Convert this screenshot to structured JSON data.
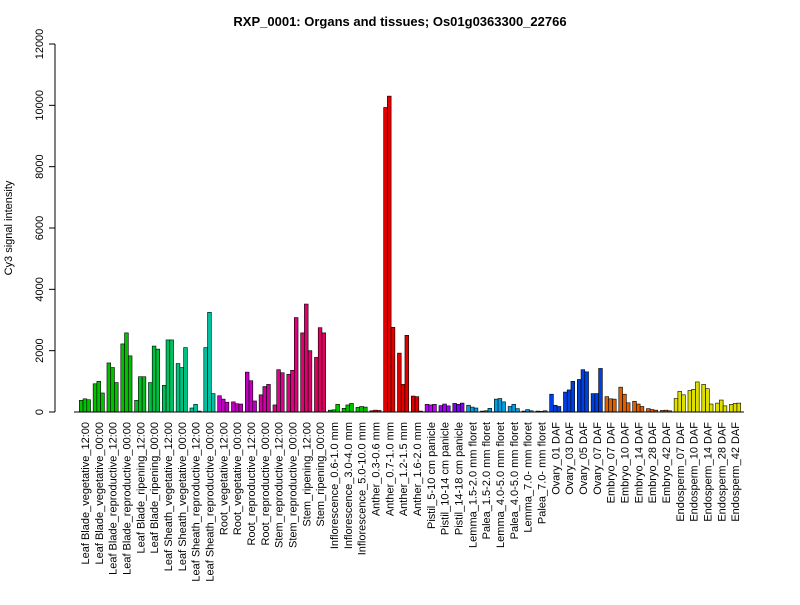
{
  "chart_data": {
    "type": "bar",
    "title": "RXP_0001: Organs and tissues; Os01g0363300_22766",
    "xlabel": "",
    "ylabel": "Cy3 signal intensity",
    "ylim": [
      0,
      12000
    ],
    "yticks": [
      0,
      2000,
      4000,
      6000,
      8000,
      10000,
      12000
    ],
    "grid": false,
    "legend": "none",
    "groups": [
      {
        "label": "Leaf Blade_vegetative_12:00",
        "color": "#00c000",
        "values": [
          380,
          430,
          400
        ]
      },
      {
        "label": "Leaf Blade_vegetative_00:00",
        "color": "#00c000",
        "values": [
          920,
          1000,
          620
        ]
      },
      {
        "label": "Leaf Blade_reproductive_12:00",
        "color": "#00c000",
        "values": [
          1600,
          1450,
          960
        ]
      },
      {
        "label": "Leaf Blade_reproductive_00:00",
        "color": "#00c000",
        "values": [
          2220,
          2580,
          1830
        ]
      },
      {
        "label": "Leaf Blade_ripening_12:00",
        "color": "#00c020",
        "values": [
          380,
          1150,
          1150
        ]
      },
      {
        "label": "Leaf Blade_ripening_00:00",
        "color": "#00c040",
        "values": [
          960,
          2150,
          2050
        ]
      },
      {
        "label": "Leaf Sheath_vegetative_12:00",
        "color": "#00c060",
        "values": [
          870,
          2350,
          2350
        ]
      },
      {
        "label": "Leaf Sheath_vegetative_00:00",
        "color": "#00c080",
        "values": [
          1580,
          1450,
          2100
        ]
      },
      {
        "label": "Leaf Sheath_reproductive_12:00",
        "color": "#00c0a0",
        "values": [
          130,
          250,
          30
        ]
      },
      {
        "label": "Leaf Sheath_reproductive_00:00",
        "color": "#00c0a0",
        "values": [
          2100,
          3250,
          600
        ]
      },
      {
        "label": "Root_vegetative_12:00",
        "color": "#c000c0",
        "values": [
          530,
          420,
          320
        ]
      },
      {
        "label": "Root_vegetative_00:00",
        "color": "#c000c0",
        "values": [
          330,
          270,
          260
        ]
      },
      {
        "label": "Root_reproductive_12:00",
        "color": "#c000c0",
        "values": [
          1300,
          1020,
          360
        ]
      },
      {
        "label": "Root_reproductive_00:00",
        "color": "#d000a0",
        "values": [
          560,
          830,
          900
        ]
      },
      {
        "label": "Stem_reproductive_12:00",
        "color": "#e00090",
        "values": [
          230,
          1380,
          1280
        ]
      },
      {
        "label": "Stem_reproductive_00:00",
        "color": "#e00080",
        "values": [
          1230,
          1360,
          3080
        ]
      },
      {
        "label": "Stem_ripening_12:00",
        "color": "#e00070",
        "values": [
          2580,
          3520,
          2000
        ]
      },
      {
        "label": "Stem_ripening_00:00",
        "color": "#e00060",
        "values": [
          1780,
          2750,
          2580
        ]
      },
      {
        "label": "Inflorescence_0.6-1.0 mm",
        "color": "#00c000",
        "values": [
          60,
          70,
          250
        ]
      },
      {
        "label": "Inflorescence_3.0-4.0 mm",
        "color": "#00c000",
        "values": [
          120,
          230,
          280
        ]
      },
      {
        "label": "Inflorescence_5.0-10.0 mm",
        "color": "#00c000",
        "values": [
          150,
          180,
          160
        ]
      },
      {
        "label": "Anther_0.3-0.6 mm",
        "color": "#ff0000",
        "values": [
          40,
          60,
          50
        ]
      },
      {
        "label": "Anther_0.7-1.0 mm",
        "color": "#e00000",
        "values": [
          9930,
          10300,
          2760
        ]
      },
      {
        "label": "Anther_1.2-1.5 mm",
        "color": "#e00000",
        "values": [
          1920,
          900,
          2500
        ]
      },
      {
        "label": "Anther_1.6-2.0 mm",
        "color": "#e00000",
        "values": [
          520,
          500,
          30
        ]
      },
      {
        "label": "Pistil_5-10 cm panicle",
        "color": "#c000ff",
        "values": [
          250,
          230,
          250
        ]
      },
      {
        "label": "Pistil_10-14 cm panicle",
        "color": "#a000ff",
        "values": [
          210,
          260,
          200
        ]
      },
      {
        "label": "Pistil_14-18 cm panicle",
        "color": "#8000ff",
        "values": [
          280,
          250,
          290
        ]
      },
      {
        "label": "Lemma_1.5-2.0 mm floret",
        "color": "#00a0e0",
        "values": [
          220,
          160,
          130
        ]
      },
      {
        "label": "Palea_1.5-2.0 mm floret",
        "color": "#00a0e0",
        "values": [
          30,
          40,
          120
        ]
      },
      {
        "label": "Lemma_4.0-5.0 mm floret",
        "color": "#00a0e0",
        "values": [
          420,
          440,
          330
        ]
      },
      {
        "label": "Palea_4.0-5.0 mm floret",
        "color": "#00a0e0",
        "values": [
          180,
          250,
          110
        ]
      },
      {
        "label": "Lemma_7.0- mm floret",
        "color": "#00a0e0",
        "values": [
          30,
          80,
          40
        ]
      },
      {
        "label": "Palea_7.0- mm floret",
        "color": "#00a0e0",
        "values": [
          30,
          20,
          40
        ]
      },
      {
        "label": "Ovary_01 DAF",
        "color": "#0040e0",
        "values": [
          580,
          220,
          180
        ]
      },
      {
        "label": "Ovary_03 DAF",
        "color": "#0040e0",
        "values": [
          650,
          720,
          1000
        ]
      },
      {
        "label": "Ovary_05 DAF",
        "color": "#0040e0",
        "values": [
          1060,
          1380,
          1310
        ]
      },
      {
        "label": "Ovary_07 DAF",
        "color": "#0040e0",
        "values": [
          600,
          600,
          1420
        ]
      },
      {
        "label": "Embryo_07 DAF",
        "color": "#e06000",
        "values": [
          500,
          430,
          420
        ]
      },
      {
        "label": "Embryo_10 DAF",
        "color": "#e06000",
        "values": [
          810,
          580,
          300
        ]
      },
      {
        "label": "Embryo_14 DAF",
        "color": "#e06000",
        "values": [
          350,
          260,
          180
        ]
      },
      {
        "label": "Embryo_28 DAF",
        "color": "#e06000",
        "values": [
          110,
          80,
          60
        ]
      },
      {
        "label": "Embryo_42 DAF",
        "color": "#e06000",
        "values": [
          50,
          60,
          40
        ]
      },
      {
        "label": "Endosperm_07 DAF",
        "color": "#e0e000",
        "values": [
          440,
          670,
          560
        ]
      },
      {
        "label": "Endosperm_10 DAF",
        "color": "#e0e000",
        "values": [
          700,
          740,
          980
        ]
      },
      {
        "label": "Endosperm_14 DAF",
        "color": "#e0e000",
        "values": [
          900,
          760,
          260
        ]
      },
      {
        "label": "Endosperm_28 DAF",
        "color": "#e0e000",
        "values": [
          290,
          390,
          200
        ]
      },
      {
        "label": "Endosperm_42 DAF",
        "color": "#e0e000",
        "values": [
          250,
          280,
          290
        ]
      }
    ]
  }
}
